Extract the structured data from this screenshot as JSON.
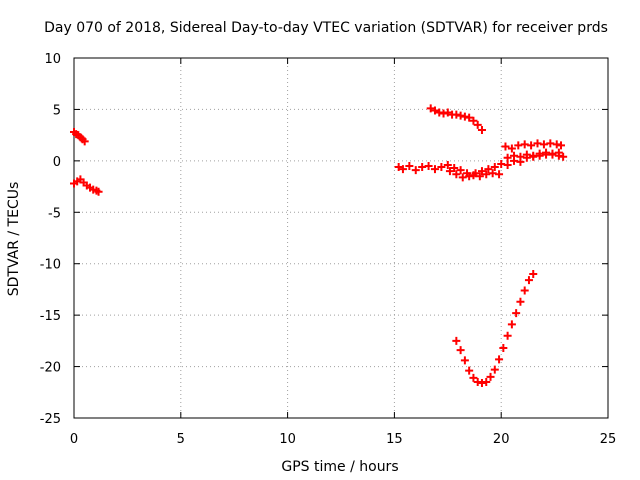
{
  "chart_data": {
    "type": "scatter",
    "title": "Day 070 of 2018, Sidereal Day-to-day VTEC variation (SDTVAR) for receiver prds",
    "xlabel": "GPS time / hours",
    "ylabel": "SDTVAR / TECUs",
    "xlim": [
      0,
      25
    ],
    "ylim": [
      -25,
      10
    ],
    "x_ticks": [
      "0",
      "5",
      "10",
      "15",
      "20",
      "25"
    ],
    "y_ticks": [
      "10",
      "5",
      "0",
      "-5",
      "-10",
      "-15",
      "-20",
      "-25"
    ],
    "grid": true,
    "marker": "plus",
    "color": "#ff0000",
    "series": [
      {
        "x": [
          0.0,
          0.1,
          0.2,
          0.3,
          0.4,
          0.5
        ],
        "y": [
          2.8,
          2.6,
          2.5,
          2.3,
          2.1,
          1.9
        ]
      },
      {
        "x": [
          0.0,
          0.15,
          0.3,
          0.45,
          0.6,
          0.75,
          0.9,
          1.05,
          1.15
        ],
        "y": [
          -2.2,
          -2.0,
          -1.8,
          -2.1,
          -2.4,
          -2.6,
          -2.8,
          -2.9,
          -3.0
        ]
      },
      {
        "x": [
          16.7,
          16.9,
          17.1,
          17.3,
          17.5,
          17.7,
          17.9,
          18.1,
          18.3,
          18.5,
          18.7,
          18.9,
          19.1
        ],
        "y": [
          5.1,
          4.9,
          4.7,
          4.6,
          4.7,
          4.5,
          4.5,
          4.4,
          4.3,
          4.2,
          3.9,
          3.5,
          3.0
        ]
      },
      {
        "x": [
          15.2,
          15.4,
          15.7,
          16.0,
          16.3,
          16.6,
          16.9,
          17.2,
          17.5,
          17.8,
          18.1,
          18.4,
          18.7,
          19.0,
          19.3,
          19.6,
          19.9
        ],
        "y": [
          -0.6,
          -0.8,
          -0.5,
          -0.9,
          -0.6,
          -0.5,
          -0.8,
          -0.6,
          -0.4,
          -0.7,
          -0.9,
          -1.2,
          -1.4,
          -1.5,
          -1.3,
          -1.2,
          -1.3
        ]
      },
      {
        "x": [
          17.6,
          17.9,
          18.2,
          18.5,
          18.8,
          19.1,
          19.4,
          19.7,
          20.0,
          20.3,
          20.6,
          20.9,
          21.2,
          21.5,
          21.8,
          22.1,
          22.4,
          22.7
        ],
        "y": [
          -1.0,
          -1.3,
          -1.6,
          -1.5,
          -1.2,
          -1.0,
          -0.8,
          -0.6,
          -0.3,
          -0.4,
          0.0,
          -0.1,
          0.3,
          0.4,
          0.5,
          0.6,
          0.7,
          0.8
        ]
      },
      {
        "x": [
          20.2,
          20.5,
          20.8,
          21.1,
          21.4,
          21.7,
          22.0,
          22.3,
          22.6,
          22.8
        ],
        "y": [
          1.4,
          1.2,
          1.5,
          1.6,
          1.5,
          1.7,
          1.6,
          1.7,
          1.6,
          1.5
        ]
      },
      {
        "x": [
          20.3,
          20.6,
          20.9,
          21.2,
          21.5,
          21.8,
          22.1,
          22.4,
          22.7,
          22.9
        ],
        "y": [
          0.3,
          0.5,
          0.4,
          0.6,
          0.5,
          0.7,
          0.8,
          0.6,
          0.5,
          0.4
        ]
      },
      {
        "x": [
          17.9,
          18.1,
          18.3,
          18.5,
          18.7,
          18.9,
          19.1,
          19.3,
          19.5,
          19.7,
          19.9,
          20.1,
          20.3,
          20.5,
          20.7,
          20.9,
          21.1,
          21.3,
          21.5
        ],
        "y": [
          -17.5,
          -18.4,
          -19.4,
          -20.4,
          -21.1,
          -21.5,
          -21.6,
          -21.5,
          -21.0,
          -20.3,
          -19.3,
          -18.2,
          -17.0,
          -15.9,
          -14.8,
          -13.7,
          -12.6,
          -11.6,
          -11.0
        ]
      }
    ]
  }
}
